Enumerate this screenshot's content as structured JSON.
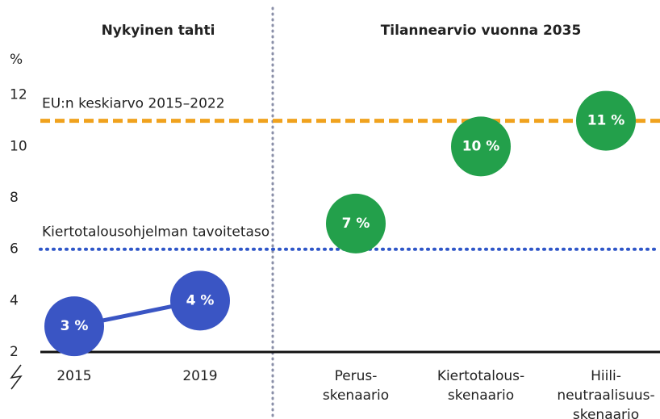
{
  "chart_data": {
    "type": "scatter",
    "sections": [
      {
        "title": "Nykyinen tahti"
      },
      {
        "title": "Tilannearvio vuonna 2035"
      }
    ],
    "y_label": "%",
    "categories": [
      [
        "2015"
      ],
      [
        "2019"
      ],
      [
        "Perus-",
        "skenaario"
      ],
      [
        "Kiertotalous-",
        "skenaario"
      ],
      [
        "Hiili-",
        "neutraalisuus-",
        "skenaario"
      ]
    ],
    "series": [
      {
        "type": "line",
        "color": "#3a55c4",
        "values": [
          3,
          4,
          null,
          null,
          null
        ],
        "value_labels": [
          "3 %",
          "4 %",
          null,
          null,
          null
        ]
      },
      {
        "type": "scatter",
        "color": "#23a04b",
        "values": [
          null,
          null,
          7,
          10,
          11
        ],
        "value_labels": [
          null,
          null,
          "7 %",
          "10 %",
          "11 %"
        ]
      }
    ],
    "reference_lines": [
      {
        "label": "EU:n keskiarvo 2015–2022",
        "value": 11,
        "color": "#f0a21e",
        "style": "dashed"
      },
      {
        "label": "Kiertotalousohjelman tavoitetaso",
        "value": 6,
        "color": "#2e56c8",
        "style": "dotted"
      }
    ],
    "ylim": [
      2,
      13.5
    ],
    "yticks": [
      2,
      4,
      6,
      8,
      10,
      12
    ]
  }
}
